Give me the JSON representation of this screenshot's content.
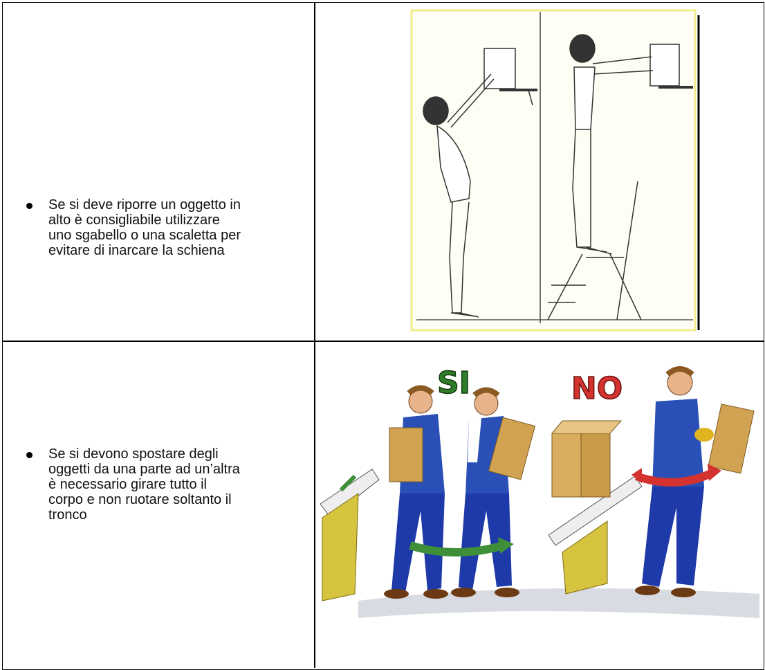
{
  "table": {
    "rows": [
      {
        "lines": [
          "Se si deve riporre un oggetto in",
          "alto è consigliabile utilizzare",
          "uno sgabello o una scaletta per",
          "evitare di inarcare la schiena"
        ]
      },
      {
        "lines": [
          "Se si devono spostare degli",
          "oggetti da una parte ad un’altra",
          "è necessario girare tutto il",
          "corpo e non ruotare soltanto il",
          "tronco"
        ],
        "labels": [
          "SI",
          "NO"
        ]
      }
    ]
  }
}
